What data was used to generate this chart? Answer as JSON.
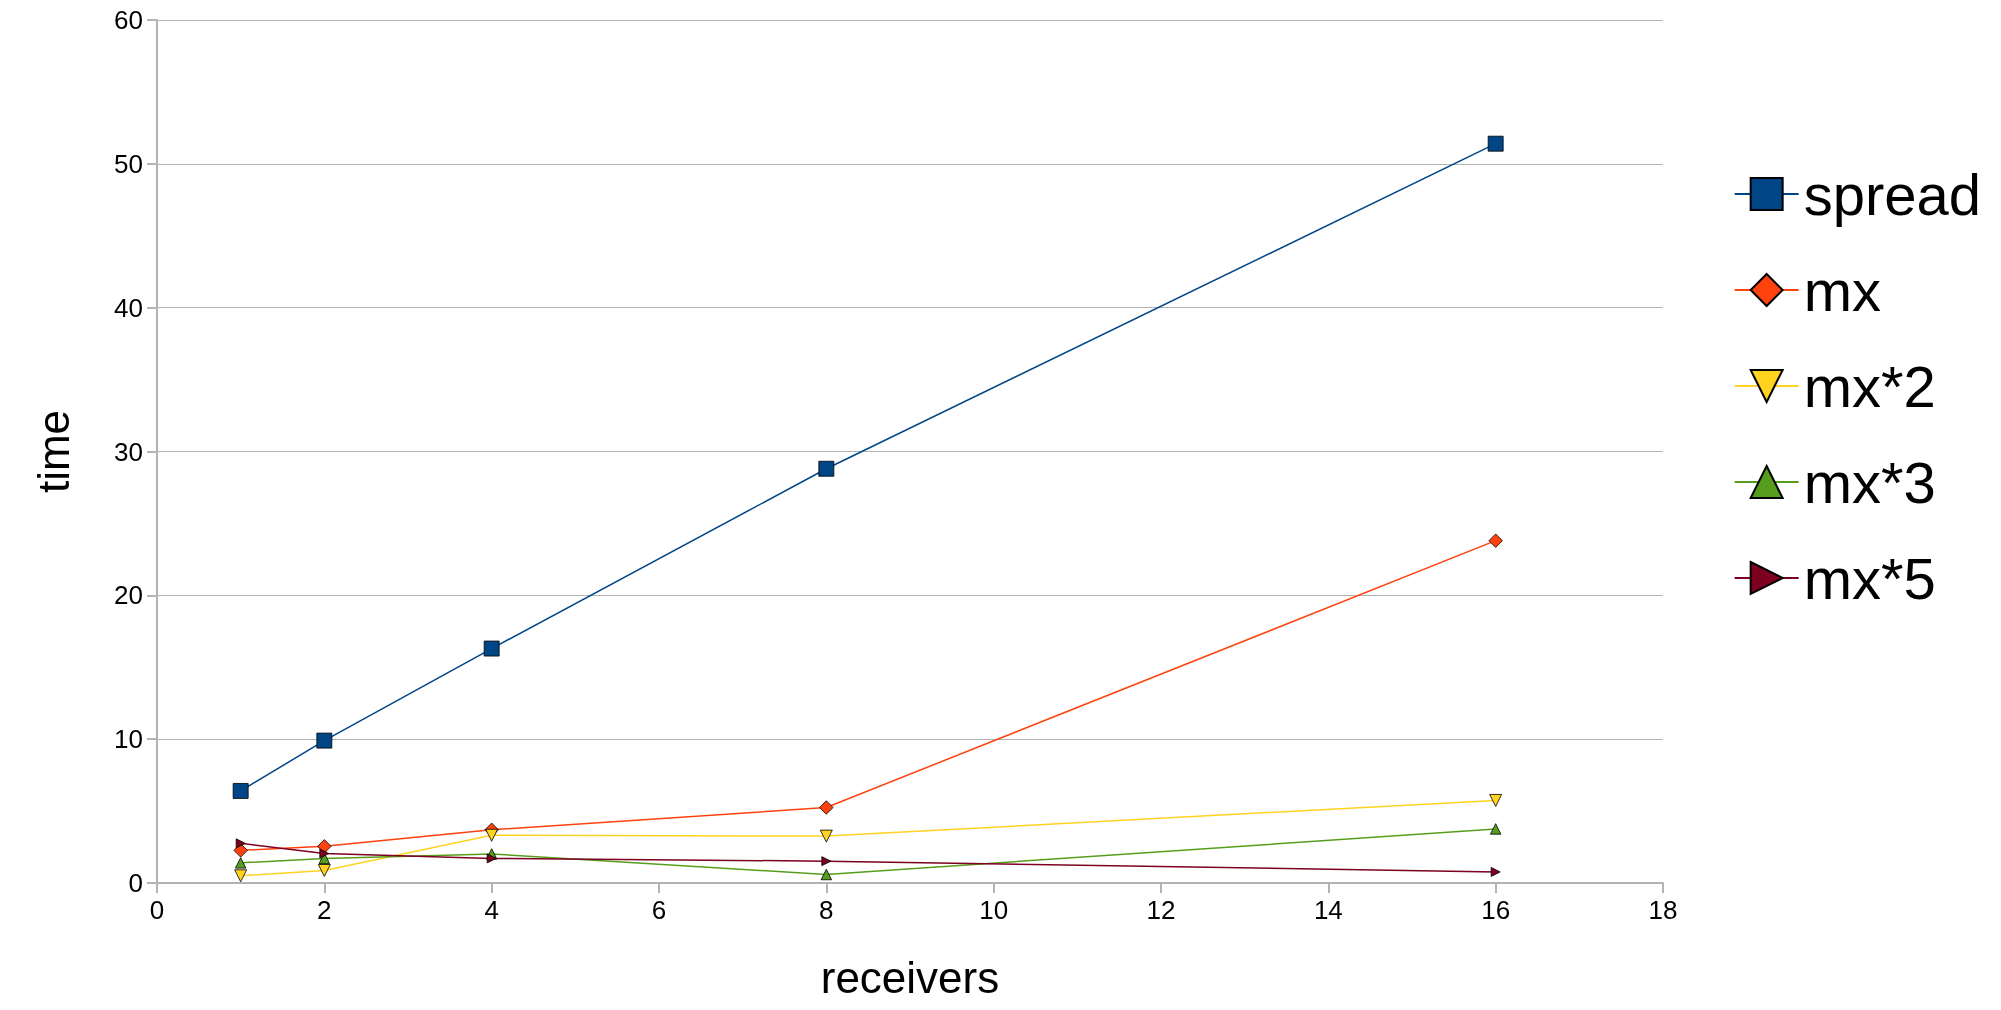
{
  "chart_data": {
    "type": "line",
    "xlabel": "receivers",
    "ylabel": "time",
    "x": [
      1,
      2,
      4,
      8,
      16
    ],
    "series": [
      {
        "name": "spread",
        "color": "#004586",
        "marker": "square",
        "values": [
          6.4,
          9.9,
          16.3,
          28.8,
          51.4
        ]
      },
      {
        "name": "mx",
        "color": "#ff420e",
        "marker": "diamond",
        "values": [
          2.27,
          2.55,
          3.7,
          5.25,
          23.8
        ]
      },
      {
        "name": "mx*2",
        "color": "#ffd320",
        "marker": "triangle-down",
        "values": [
          0.5,
          0.87,
          3.32,
          3.26,
          5.74
        ]
      },
      {
        "name": "mx*3",
        "color": "#579d1c",
        "marker": "triangle",
        "values": [
          1.4,
          1.71,
          2.02,
          0.59,
          3.76
        ]
      },
      {
        "name": "mx*5",
        "color": "#7e0021",
        "marker": "triangle-right",
        "values": [
          2.76,
          2.05,
          1.71,
          1.52,
          0.77
        ]
      }
    ],
    "xlim": [
      0,
      18
    ],
    "xticks": [
      0,
      2,
      4,
      6,
      8,
      10,
      12,
      14,
      16,
      18
    ],
    "ylim": [
      0,
      60
    ],
    "yticks": [
      0,
      10,
      20,
      30,
      40,
      50,
      60
    ],
    "grid": "y",
    "legend": "right",
    "line_style": "solid"
  }
}
